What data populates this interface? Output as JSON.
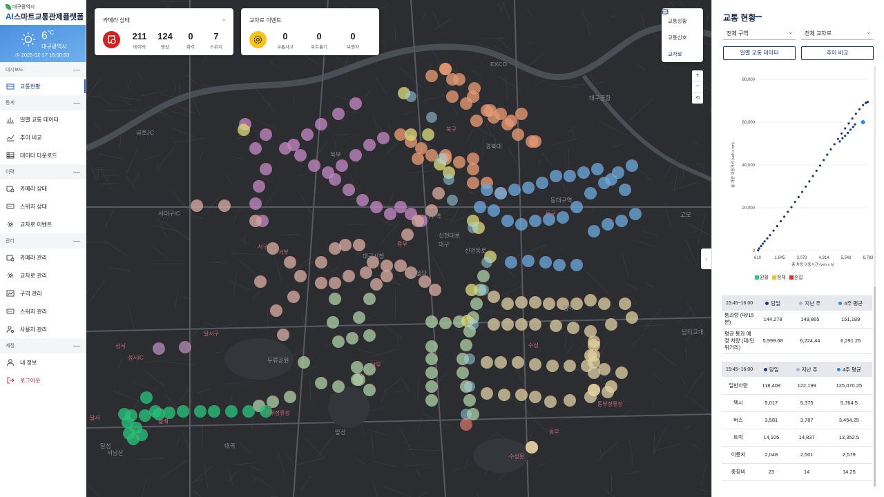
{
  "brand": {
    "subtitle": "대구광역시",
    "ai": "AI",
    "title": "스마트교통관제플랫폼"
  },
  "weather": {
    "temp": "6",
    "unit": "°C",
    "city": "대구광역시",
    "datetime": "2025-02-17 16:00:53",
    "icon": "sun-icon"
  },
  "sidebar": {
    "sections": [
      {
        "label": "대시보드",
        "items": [
          {
            "label": "교통현황",
            "icon": "dashboard-icon"
          }
        ]
      },
      {
        "label": "통계",
        "items": [
          {
            "label": "일별 교통 데이터",
            "icon": "bar-chart-icon"
          },
          {
            "label": "추이 비교",
            "icon": "line-chart-icon"
          },
          {
            "label": "데이터 다운로드",
            "icon": "table-icon"
          }
        ]
      },
      {
        "label": "이력",
        "items": [
          {
            "label": "카메라 상태",
            "icon": "camera-icon"
          },
          {
            "label": "스위치 상태",
            "icon": "switch-icon"
          },
          {
            "label": "교차로 이벤트",
            "icon": "gear-icon"
          }
        ]
      },
      {
        "label": "관리",
        "items": [
          {
            "label": "카메라 관리",
            "icon": "camera-icon"
          },
          {
            "label": "교차로 관리",
            "icon": "gear-icon"
          },
          {
            "label": "구역 관리",
            "icon": "area-icon"
          },
          {
            "label": "스위치 관리",
            "icon": "switch-icon"
          },
          {
            "label": "사용자 관리",
            "icon": "user-gear-icon"
          }
        ]
      },
      {
        "label": "계정",
        "items": [
          {
            "label": "내 정보",
            "icon": "user-icon"
          },
          {
            "label": "로그아웃",
            "icon": "logout-icon"
          }
        ]
      }
    ]
  },
  "camera_card": {
    "title": "카메라 상태",
    "stats": [
      {
        "value": "211",
        "label": "데이터"
      },
      {
        "value": "124",
        "label": "영상"
      },
      {
        "value": "0",
        "label": "화각"
      },
      {
        "value": "7",
        "label": "스위치"
      }
    ]
  },
  "event_card": {
    "title": "교차로 이벤트",
    "stats": [
      {
        "value": "0",
        "label": "교통사고"
      },
      {
        "value": "0",
        "label": "포트홀기"
      },
      {
        "value": "0",
        "label": "보행자"
      }
    ]
  },
  "map_menu": [
    {
      "label": "교통상황",
      "icon": "traffic-icon"
    },
    {
      "label": "교통신호",
      "icon": "signal-icon"
    },
    {
      "label": "교차로",
      "icon": "intersection-icon"
    }
  ],
  "map_labels": [
    "EXCO",
    "대구공항",
    "금호JC",
    "북구",
    "경북대",
    "북부",
    "서대구IC",
    "동대구역",
    "동구",
    "대구역",
    "서부",
    "중부",
    "신천대로",
    "대구",
    "신천동로",
    "서구",
    "반월당",
    "범어",
    "수성",
    "남부",
    "성서",
    "성서IC",
    "두류공원",
    "달서구",
    "서부정류장",
    "월배",
    "달서",
    "수성못",
    "대구시청",
    "동부",
    "달성",
    "고모",
    "담티고개",
    "서남산",
    "앞산",
    "대곡",
    "동부정류장"
  ],
  "right_panel": {
    "title": "교통 현황",
    "select_zone": "전체 구역",
    "select_cross": "전체 교차로",
    "btn_daily": "일별 교통 데이터",
    "btn_trend": "추이 비교",
    "legend": [
      {
        "label": "원활",
        "color": "#2ecc71"
      },
      {
        "label": "정체",
        "color": "#f1c232"
      },
      {
        "label": "혼잡",
        "color": "#e03131"
      }
    ],
    "table1": {
      "headers": [
        "15:45~16:00",
        "당일",
        "지난 주",
        "4주 평균"
      ],
      "rows": [
        [
          "통과량 (대/15분)",
          "144,278",
          "149,865",
          "151,189"
        ],
        [
          "평균 통과 예정 차량 (대/단위거리)",
          "5,999.68",
          "6,224.44",
          "6,291.25"
        ]
      ]
    },
    "table2": {
      "headers": [
        "15:45~16:00",
        "당일",
        "지난 주",
        "4주 평균"
      ],
      "rows": [
        [
          "일반차량",
          "118,408",
          "122,199",
          "125,070.25"
        ],
        [
          "택시",
          "5,017",
          "5,375",
          "5,764.5"
        ],
        [
          "버스",
          "3,581",
          "3,787",
          "3,454.25"
        ],
        [
          "트럭",
          "14,105",
          "14,837",
          "13,352.5"
        ],
        [
          "이륜차",
          "2,048",
          "2,501",
          "2,579"
        ],
        [
          "중장비",
          "23",
          "14",
          "14.25"
        ]
      ]
    }
  },
  "chart_data": {
    "type": "scatter",
    "xlabel": "총 차량 이동시간 (veh x h)",
    "ylabel": "총 차량 이동거리 (veh x km)",
    "xticks": [
      "610",
      "1,845",
      "3,079",
      "4,314",
      "5,548",
      "6,783"
    ],
    "yticks": [
      "0",
      "20,000",
      "40,000",
      "60,000",
      "80,000"
    ],
    "xlim": [
      610,
      6783
    ],
    "ylim": [
      0,
      80000
    ],
    "series": [
      {
        "values": [
          [
            640,
            100
          ],
          [
            700,
            1000
          ],
          [
            800,
            2100
          ],
          [
            900,
            3200
          ],
          [
            1000,
            4300
          ],
          [
            1150,
            5700
          ],
          [
            1300,
            7200
          ],
          [
            1500,
            9300
          ],
          [
            1700,
            11400
          ],
          [
            1900,
            13700
          ],
          [
            2100,
            15800
          ],
          [
            2300,
            18100
          ],
          [
            2500,
            20300
          ],
          [
            2700,
            22700
          ],
          [
            2900,
            25000
          ],
          [
            3100,
            27400
          ],
          [
            3300,
            29900
          ],
          [
            3500,
            32300
          ],
          [
            3700,
            34800
          ],
          [
            3900,
            37300
          ],
          [
            4100,
            39700
          ],
          [
            4300,
            42300
          ],
          [
            4500,
            44800
          ],
          [
            4700,
            47300
          ],
          [
            4900,
            49700
          ],
          [
            5100,
            52200
          ],
          [
            5300,
            54700
          ],
          [
            5500,
            57100
          ],
          [
            5700,
            59400
          ],
          [
            5900,
            61700
          ],
          [
            6100,
            63900
          ],
          [
            6300,
            66000
          ],
          [
            6500,
            68000
          ],
          [
            6650,
            69000
          ],
          [
            6700,
            69200
          ],
          [
            6760,
            69500
          ],
          [
            5200,
            51000
          ],
          [
            5350,
            52500
          ],
          [
            5500,
            53600
          ],
          [
            5650,
            55000
          ],
          [
            5800,
            56500
          ],
          [
            5950,
            57800
          ],
          [
            6050,
            59000
          ]
        ]
      },
      {
        "values": [
          [
            6500,
            60000
          ]
        ]
      }
    ]
  }
}
